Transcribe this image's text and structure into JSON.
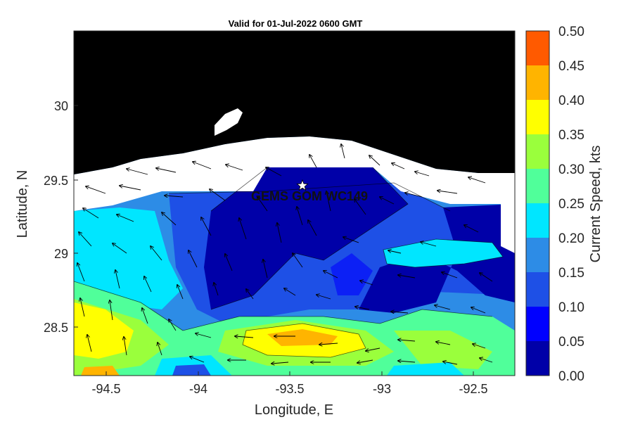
{
  "title": "Valid for 01-Jul-2022 0600 GMT",
  "station_label": "GEMS GOM WC149",
  "xlabel": "Longitude, E",
  "ylabel": "Latitude, N",
  "colorbar_label": "Current Speed, kts",
  "x_ticks": [
    "-94.5",
    "-94",
    "-93.5",
    "-93",
    "-92.5"
  ],
  "y_ticks": [
    "30",
    "29.5",
    "29",
    "28.5"
  ],
  "colorbar": {
    "levels": [
      "0.00",
      "0.05",
      "0.10",
      "0.15",
      "0.20",
      "0.25",
      "0.30",
      "0.35",
      "0.40",
      "0.45",
      "0.50"
    ],
    "colors": [
      "#0000a8",
      "#0000ff",
      "#1e50e6",
      "#2d8ce6",
      "#00e6ff",
      "#50ff9a",
      "#9aff3c",
      "#ffff00",
      "#ffb400",
      "#ff5a00"
    ]
  },
  "chart_data": {
    "type": "contour-map",
    "xlim": [
      -94.7,
      -92.3
    ],
    "ylim": [
      28.15,
      29.95
    ],
    "land_color": "#000000",
    "no_data_color": "#ffffff",
    "station": {
      "lon": -93.42,
      "lat": 29.44,
      "marker": "star"
    }
  }
}
